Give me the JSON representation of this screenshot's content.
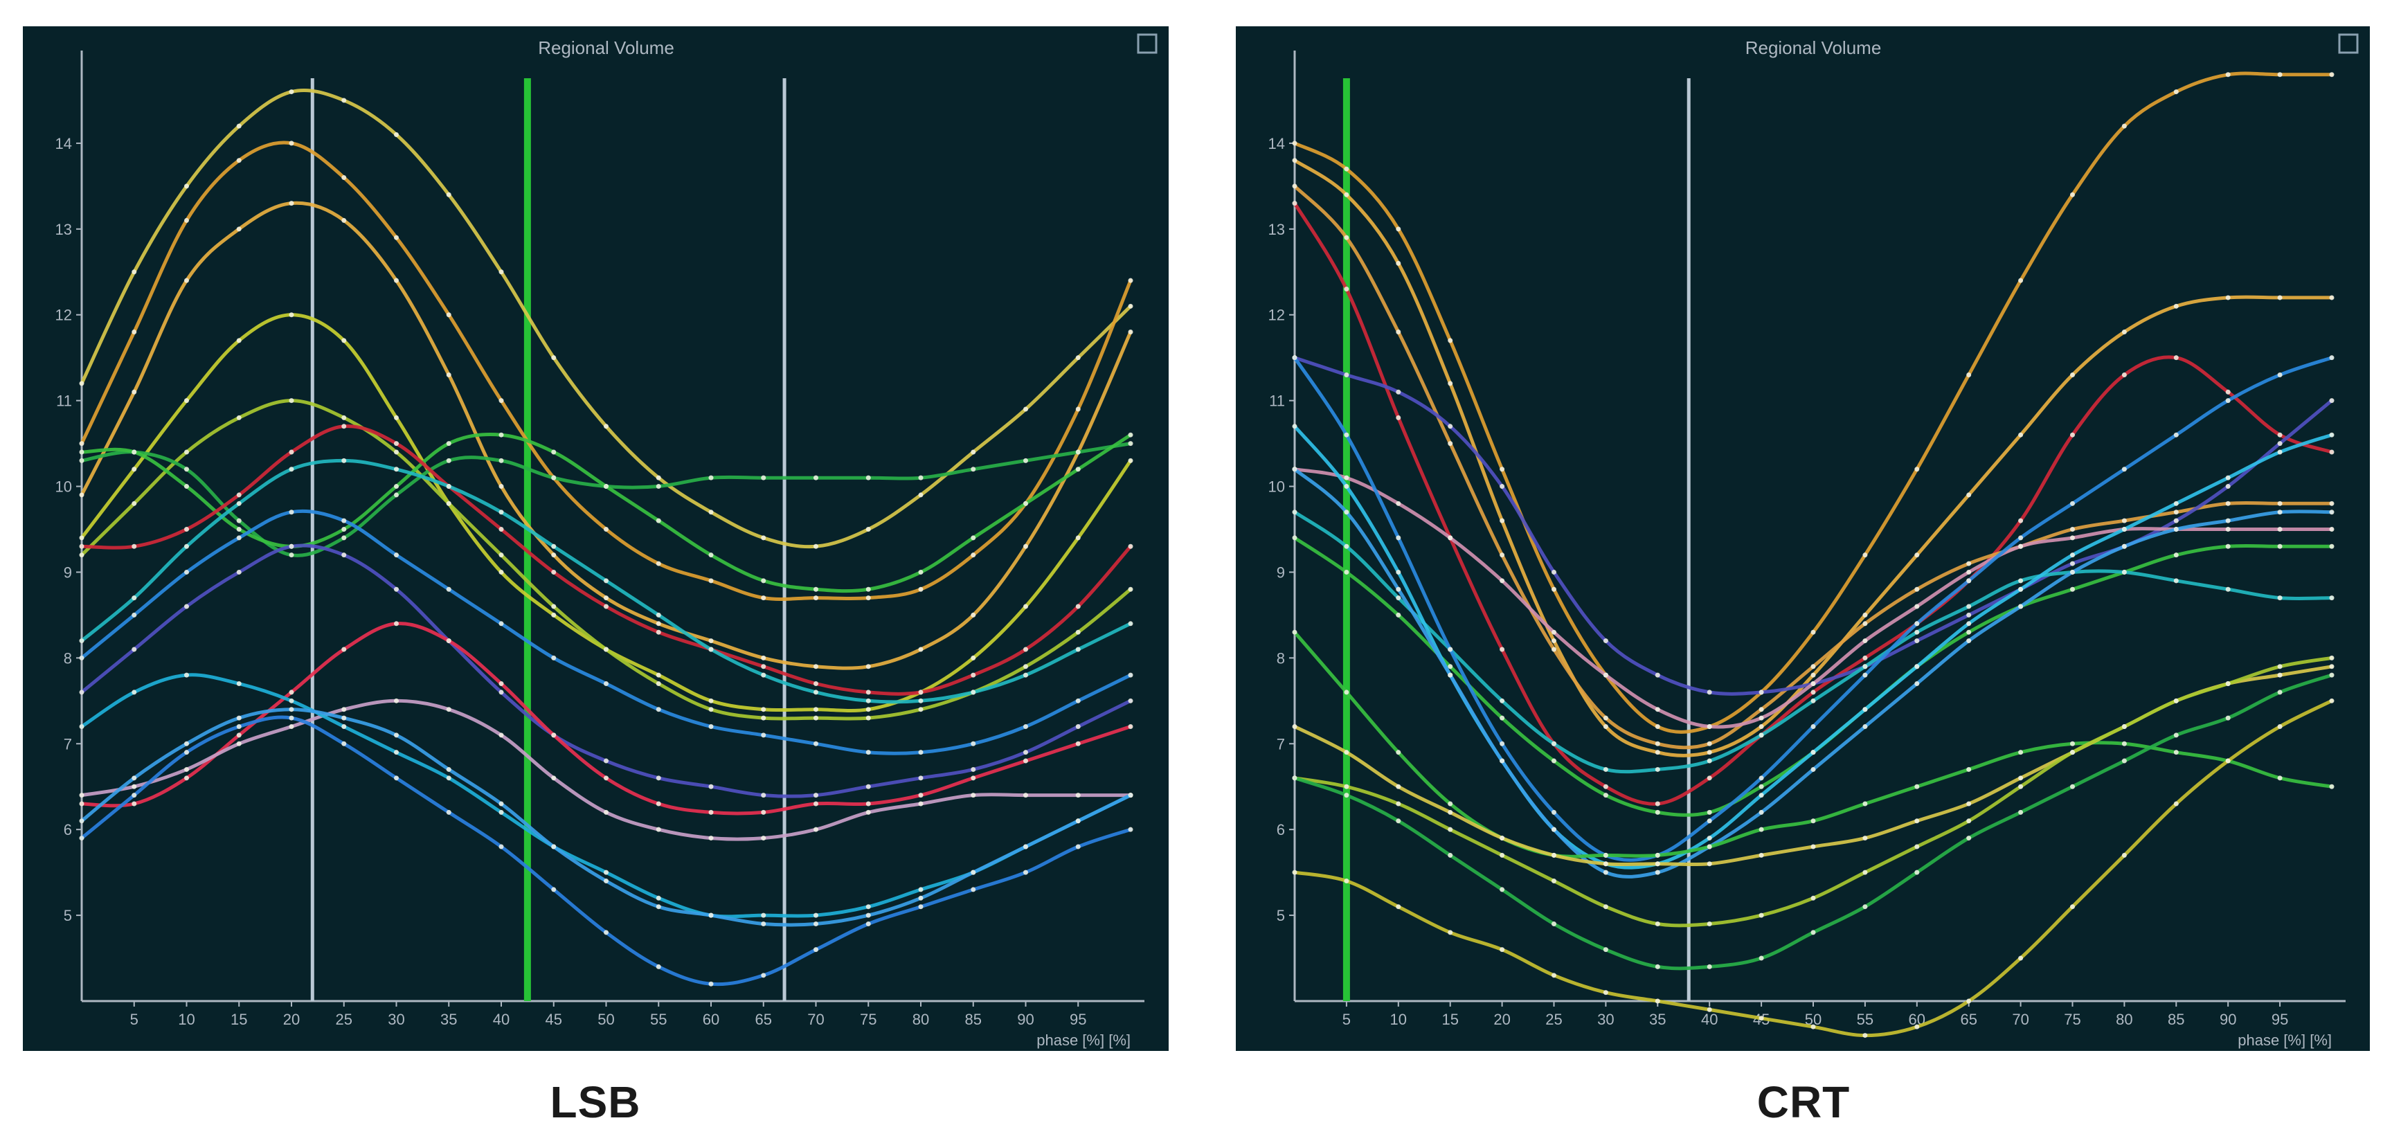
{
  "captions": [
    "LSB",
    "CRT"
  ],
  "chart_data": [
    {
      "type": "line",
      "caption": "LSB",
      "title": "Regional Volume",
      "xlabel": "phase [%] [%]",
      "ylabel": "",
      "xlim": [
        0,
        100
      ],
      "ylim": [
        4,
        15
      ],
      "x_ticks": [
        5,
        10,
        15,
        20,
        25,
        30,
        35,
        40,
        45,
        50,
        55,
        60,
        65,
        70,
        75,
        80,
        85,
        90,
        95
      ],
      "y_ticks": [
        5,
        6,
        7,
        8,
        9,
        10,
        11,
        12,
        13,
        14
      ],
      "markers": [
        {
          "x": 22,
          "color": "#b9c8d4"
        },
        {
          "x": 42.5,
          "color": "#27c236"
        },
        {
          "x": 67,
          "color": "#b9c8d4"
        }
      ],
      "x": [
        0,
        5,
        10,
        15,
        20,
        25,
        30,
        35,
        40,
        45,
        50,
        55,
        60,
        65,
        70,
        75,
        80,
        85,
        90,
        95,
        100
      ],
      "series": [
        {
          "color": "#d8c84a",
          "values": [
            11.2,
            12.5,
            13.5,
            14.2,
            14.6,
            14.5,
            14.1,
            13.4,
            12.5,
            11.5,
            10.7,
            10.1,
            9.7,
            9.4,
            9.3,
            9.5,
            9.9,
            10.4,
            10.9,
            11.5,
            12.1
          ]
        },
        {
          "color": "#e0a030",
          "values": [
            10.5,
            11.8,
            13.1,
            13.8,
            14.0,
            13.6,
            12.9,
            12.0,
            11.0,
            10.1,
            9.5,
            9.1,
            8.9,
            8.7,
            8.7,
            8.7,
            8.8,
            9.2,
            9.8,
            10.9,
            12.4
          ]
        },
        {
          "color": "#e8b040",
          "values": [
            9.9,
            11.1,
            12.4,
            13.0,
            13.3,
            13.1,
            12.4,
            11.3,
            10.0,
            9.2,
            8.7,
            8.4,
            8.2,
            8.0,
            7.9,
            7.9,
            8.1,
            8.5,
            9.3,
            10.4,
            11.8
          ]
        },
        {
          "color": "#c8d030",
          "values": [
            9.4,
            10.2,
            11.0,
            11.7,
            12.0,
            11.7,
            10.8,
            9.8,
            9.0,
            8.5,
            8.1,
            7.8,
            7.5,
            7.4,
            7.4,
            7.4,
            7.6,
            8.0,
            8.6,
            9.4,
            10.3
          ]
        },
        {
          "color": "#a8c830",
          "values": [
            9.2,
            9.8,
            10.4,
            10.8,
            11.0,
            10.8,
            10.4,
            9.8,
            9.2,
            8.6,
            8.1,
            7.7,
            7.4,
            7.3,
            7.3,
            7.3,
            7.4,
            7.6,
            7.9,
            8.3,
            8.8
          ]
        },
        {
          "color": "#28b048",
          "values": [
            10.3,
            10.4,
            10.2,
            9.6,
            9.2,
            9.4,
            9.9,
            10.3,
            10.3,
            10.1,
            10.0,
            10.0,
            10.1,
            10.1,
            10.1,
            10.1,
            10.1,
            10.2,
            10.3,
            10.4,
            10.5
          ]
        },
        {
          "color": "#38c040",
          "values": [
            10.4,
            10.4,
            10.0,
            9.5,
            9.3,
            9.5,
            10.0,
            10.5,
            10.6,
            10.4,
            10.0,
            9.6,
            9.2,
            8.9,
            8.8,
            8.8,
            9.0,
            9.4,
            9.8,
            10.2,
            10.6
          ]
        },
        {
          "color": "#d02838",
          "values": [
            9.3,
            9.3,
            9.5,
            9.9,
            10.4,
            10.7,
            10.5,
            10.0,
            9.5,
            9.0,
            8.6,
            8.3,
            8.1,
            7.9,
            7.7,
            7.6,
            7.6,
            7.8,
            8.1,
            8.6,
            9.3
          ]
        },
        {
          "color": "#22b8c0",
          "values": [
            8.2,
            8.7,
            9.3,
            9.8,
            10.2,
            10.3,
            10.2,
            10.0,
            9.7,
            9.3,
            8.9,
            8.5,
            8.1,
            7.8,
            7.6,
            7.5,
            7.5,
            7.6,
            7.8,
            8.1,
            8.4
          ]
        },
        {
          "color": "#2a8ae0",
          "values": [
            8.0,
            8.5,
            9.0,
            9.4,
            9.7,
            9.6,
            9.2,
            8.8,
            8.4,
            8.0,
            7.7,
            7.4,
            7.2,
            7.1,
            7.0,
            6.9,
            6.9,
            7.0,
            7.2,
            7.5,
            7.8
          ]
        },
        {
          "color": "#5050c0",
          "values": [
            7.6,
            8.1,
            8.6,
            9.0,
            9.3,
            9.2,
            8.8,
            8.2,
            7.6,
            7.1,
            6.8,
            6.6,
            6.5,
            6.4,
            6.4,
            6.5,
            6.6,
            6.7,
            6.9,
            7.2,
            7.5
          ]
        },
        {
          "color": "#e83050",
          "values": [
            6.3,
            6.3,
            6.6,
            7.1,
            7.6,
            8.1,
            8.4,
            8.2,
            7.7,
            7.1,
            6.6,
            6.3,
            6.2,
            6.2,
            6.3,
            6.3,
            6.4,
            6.6,
            6.8,
            7.0,
            7.2
          ]
        },
        {
          "color": "#c8a0c8",
          "values": [
            6.4,
            6.5,
            6.7,
            7.0,
            7.2,
            7.4,
            7.5,
            7.4,
            7.1,
            6.6,
            6.2,
            6.0,
            5.9,
            5.9,
            6.0,
            6.2,
            6.3,
            6.4,
            6.4,
            6.4,
            6.4
          ]
        },
        {
          "color": "#1eb0d8",
          "values": [
            7.2,
            7.6,
            7.8,
            7.7,
            7.5,
            7.2,
            6.9,
            6.6,
            6.2,
            5.8,
            5.5,
            5.2,
            5.0,
            5.0,
            5.0,
            5.1,
            5.3,
            5.5,
            5.8,
            6.1,
            6.4
          ]
        },
        {
          "color": "#3aa0e8",
          "values": [
            6.1,
            6.6,
            7.0,
            7.3,
            7.4,
            7.3,
            7.1,
            6.7,
            6.3,
            5.8,
            5.4,
            5.1,
            5.0,
            4.9,
            4.9,
            5.0,
            5.2,
            5.5,
            5.8,
            6.1,
            6.4
          ]
        },
        {
          "color": "#2a80e0",
          "values": [
            5.9,
            6.4,
            6.9,
            7.2,
            7.3,
            7.0,
            6.6,
            6.2,
            5.8,
            5.3,
            4.8,
            4.4,
            4.2,
            4.3,
            4.6,
            4.9,
            5.1,
            5.3,
            5.5,
            5.8,
            6.0
          ]
        }
      ]
    },
    {
      "type": "line",
      "caption": "CRT",
      "title": "Regional Volume",
      "xlabel": "phase [%] [%]",
      "ylabel": "",
      "xlim": [
        0,
        100
      ],
      "ylim": [
        4,
        15
      ],
      "x_ticks": [
        5,
        10,
        15,
        20,
        25,
        30,
        35,
        40,
        45,
        50,
        55,
        60,
        65,
        70,
        75,
        80,
        85,
        90,
        95
      ],
      "y_ticks": [
        5,
        6,
        7,
        8,
        9,
        10,
        11,
        12,
        13,
        14
      ],
      "markers": [
        {
          "x": 5,
          "color": "#27c236"
        },
        {
          "x": 38,
          "color": "#b9c8d4"
        }
      ],
      "x": [
        0,
        5,
        10,
        15,
        20,
        25,
        30,
        35,
        40,
        45,
        50,
        55,
        60,
        65,
        70,
        75,
        80,
        85,
        90,
        95,
        100
      ],
      "series": [
        {
          "color": "#e0a030",
          "values": [
            14.0,
            13.7,
            13.0,
            11.7,
            10.2,
            8.8,
            7.8,
            7.2,
            7.2,
            7.6,
            8.3,
            9.2,
            10.2,
            11.3,
            12.4,
            13.4,
            14.2,
            14.6,
            14.8,
            14.8,
            14.8
          ]
        },
        {
          "color": "#e8b040",
          "values": [
            13.8,
            13.4,
            12.6,
            11.2,
            9.6,
            8.2,
            7.2,
            6.9,
            6.9,
            7.2,
            7.8,
            8.5,
            9.2,
            9.9,
            10.6,
            11.3,
            11.8,
            12.1,
            12.2,
            12.2,
            12.2
          ]
        },
        {
          "color": "#d02838",
          "values": [
            13.3,
            12.3,
            10.8,
            9.4,
            8.1,
            7.0,
            6.5,
            6.3,
            6.6,
            7.1,
            7.6,
            8.0,
            8.4,
            8.9,
            9.6,
            10.6,
            11.3,
            11.5,
            11.1,
            10.6,
            10.4
          ]
        },
        {
          "color": "#e0a040",
          "values": [
            13.5,
            12.9,
            11.8,
            10.5,
            9.2,
            8.1,
            7.3,
            7.0,
            7.0,
            7.4,
            7.9,
            8.4,
            8.8,
            9.1,
            9.3,
            9.5,
            9.6,
            9.7,
            9.8,
            9.8,
            9.8
          ]
        },
        {
          "color": "#5050c0",
          "values": [
            11.5,
            11.3,
            11.1,
            10.7,
            10.0,
            9.0,
            8.2,
            7.8,
            7.6,
            7.6,
            7.7,
            7.9,
            8.2,
            8.5,
            8.8,
            9.1,
            9.3,
            9.6,
            10.0,
            10.5,
            11.0
          ]
        },
        {
          "color": "#d090b0",
          "values": [
            10.2,
            10.1,
            9.8,
            9.4,
            8.9,
            8.3,
            7.8,
            7.4,
            7.2,
            7.3,
            7.7,
            8.2,
            8.6,
            9.0,
            9.3,
            9.4,
            9.5,
            9.5,
            9.5,
            9.5,
            9.5
          ]
        },
        {
          "color": "#38c040",
          "values": [
            9.4,
            9.0,
            8.5,
            7.9,
            7.3,
            6.8,
            6.4,
            6.2,
            6.2,
            6.5,
            6.9,
            7.4,
            7.9,
            8.3,
            8.6,
            8.8,
            9.0,
            9.2,
            9.3,
            9.3,
            9.3
          ]
        },
        {
          "color": "#22b8c0",
          "values": [
            9.7,
            9.3,
            8.7,
            8.1,
            7.5,
            7.0,
            6.7,
            6.7,
            6.8,
            7.1,
            7.5,
            7.9,
            8.3,
            8.6,
            8.9,
            9.0,
            9.0,
            8.9,
            8.8,
            8.7,
            8.7
          ]
        },
        {
          "color": "#2a8ae0",
          "values": [
            11.5,
            10.6,
            9.4,
            8.1,
            7.0,
            6.2,
            5.7,
            5.7,
            6.1,
            6.6,
            7.2,
            7.8,
            8.4,
            8.9,
            9.4,
            9.8,
            10.2,
            10.6,
            11.0,
            11.3,
            11.5
          ]
        },
        {
          "color": "#30c0e8",
          "values": [
            10.7,
            10.0,
            9.0,
            7.8,
            6.8,
            6.0,
            5.6,
            5.6,
            5.9,
            6.4,
            6.9,
            7.4,
            7.9,
            8.4,
            8.8,
            9.2,
            9.5,
            9.8,
            10.1,
            10.4,
            10.6
          ]
        },
        {
          "color": "#3aa0e8",
          "values": [
            10.2,
            9.7,
            8.8,
            7.8,
            6.8,
            6.0,
            5.5,
            5.5,
            5.8,
            6.2,
            6.7,
            7.2,
            7.7,
            8.2,
            8.6,
            9.0,
            9.3,
            9.5,
            9.6,
            9.7,
            9.7
          ]
        },
        {
          "color": "#38c040",
          "values": [
            8.3,
            7.6,
            6.9,
            6.3,
            5.9,
            5.7,
            5.7,
            5.7,
            5.8,
            6.0,
            6.1,
            6.3,
            6.5,
            6.7,
            6.9,
            7.0,
            7.0,
            6.9,
            6.8,
            6.6,
            6.5
          ]
        },
        {
          "color": "#d8c84a",
          "values": [
            7.2,
            6.9,
            6.5,
            6.2,
            5.9,
            5.7,
            5.6,
            5.6,
            5.6,
            5.7,
            5.8,
            5.9,
            6.1,
            6.3,
            6.6,
            6.9,
            7.2,
            7.5,
            7.7,
            7.8,
            7.9
          ]
        },
        {
          "color": "#a8c830",
          "values": [
            6.6,
            6.5,
            6.3,
            6.0,
            5.7,
            5.4,
            5.1,
            4.9,
            4.9,
            5.0,
            5.2,
            5.5,
            5.8,
            6.1,
            6.5,
            6.9,
            7.2,
            7.5,
            7.7,
            7.9,
            8.0
          ]
        },
        {
          "color": "#28b048",
          "values": [
            6.6,
            6.4,
            6.1,
            5.7,
            5.3,
            4.9,
            4.6,
            4.4,
            4.4,
            4.5,
            4.8,
            5.1,
            5.5,
            5.9,
            6.2,
            6.5,
            6.8,
            7.1,
            7.3,
            7.6,
            7.8
          ]
        },
        {
          "color": "#c8c030",
          "values": [
            5.5,
            5.4,
            5.1,
            4.8,
            4.6,
            4.3,
            4.1,
            4.0,
            3.9,
            3.8,
            3.7,
            3.6,
            3.7,
            4.0,
            4.5,
            5.1,
            5.7,
            6.3,
            6.8,
            7.2,
            7.5
          ]
        }
      ]
    }
  ]
}
